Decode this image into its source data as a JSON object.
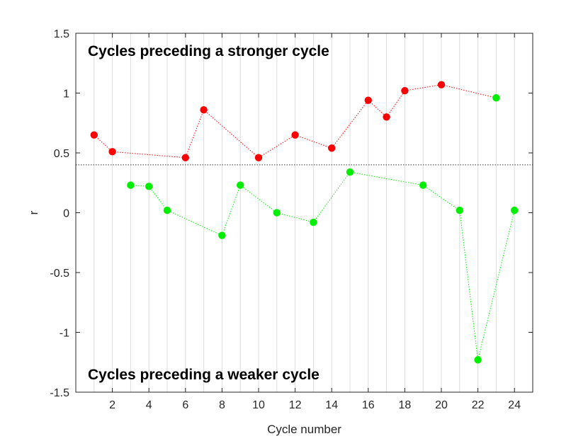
{
  "chart_data": {
    "type": "scatter",
    "xlabel": "Cycle number",
    "ylabel": "r",
    "xlim": [
      0,
      25
    ],
    "ylim": [
      -1.5,
      1.5
    ],
    "xticks": [
      2,
      4,
      6,
      8,
      10,
      12,
      14,
      16,
      18,
      20,
      22,
      24
    ],
    "yticks": [
      -1.5,
      -1,
      -0.5,
      0,
      0.5,
      1,
      1.5
    ],
    "ytick_labels": [
      "-1.5",
      "-1",
      "-0.5",
      "0",
      "0.5",
      "1",
      "1.5"
    ],
    "vertical_gridlines_at": [
      1,
      2,
      3,
      4,
      5,
      6,
      7,
      8,
      9,
      10,
      11,
      12,
      13,
      14,
      15,
      16,
      17,
      18,
      19,
      20,
      21,
      22,
      23,
      24
    ],
    "threshold": 0.4,
    "annotations": {
      "top": "Cycles preceding a stronger cycle",
      "bottom": "Cycles preceding a weaker cycle"
    },
    "series": [
      {
        "name": "stronger",
        "color": "#ff0000",
        "x": [
          1,
          2,
          6,
          7,
          10,
          12,
          14,
          16,
          17,
          18,
          20,
          23
        ],
        "y": [
          0.65,
          0.51,
          0.46,
          0.86,
          0.46,
          0.65,
          0.54,
          0.94,
          0.8,
          1.02,
          1.07,
          0.96
        ],
        "point_colors": [
          "#ff0000",
          "#ff0000",
          "#ff0000",
          "#ff0000",
          "#ff0000",
          "#ff0000",
          "#ff0000",
          "#ff0000",
          "#ff0000",
          "#ff0000",
          "#ff0000",
          "#00ee00"
        ]
      },
      {
        "name": "weaker",
        "color": "#00ee00",
        "x": [
          3,
          4,
          5,
          8,
          9,
          11,
          13,
          15,
          19,
          21,
          22,
          24
        ],
        "y": [
          0.23,
          0.22,
          0.02,
          -0.19,
          0.23,
          0.0,
          -0.08,
          0.34,
          0.23,
          0.02,
          -1.23,
          0.02
        ],
        "point_colors": [
          "#00ee00",
          "#00ee00",
          "#00ee00",
          "#00ee00",
          "#00ee00",
          "#00ee00",
          "#00ee00",
          "#00ee00",
          "#00ee00",
          "#00ee00",
          "#00ee00",
          "#00ee00"
        ]
      }
    ]
  }
}
